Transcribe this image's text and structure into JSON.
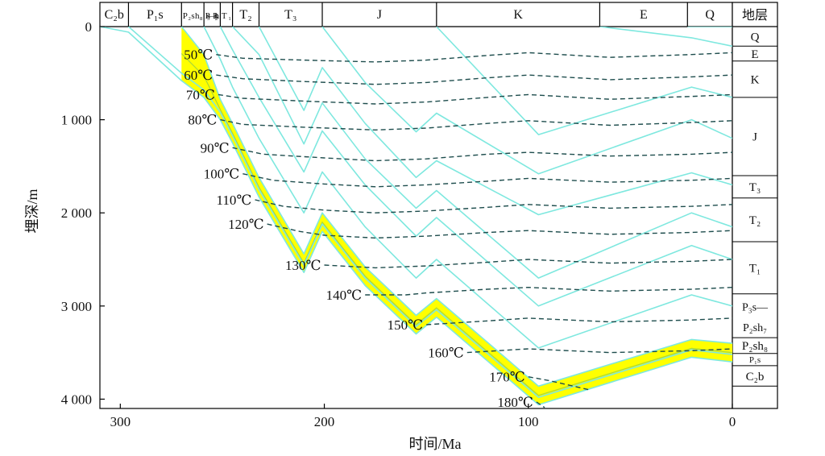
{
  "chart_data": {
    "type": "line",
    "title": "",
    "xlabel": "时间/Ma",
    "ylabel": "埋深/m",
    "x_reversed": true,
    "xlim": [
      310,
      0
    ],
    "ylim": [
      0,
      4100
    ],
    "x_ticks": [
      {
        "value": 300,
        "label": "300"
      },
      {
        "value": 200,
        "label": "200"
      },
      {
        "value": 100,
        "label": "100"
      },
      {
        "value": 0,
        "label": "0"
      }
    ],
    "y_ticks": [
      {
        "value": 0,
        "label": "0"
      },
      {
        "value": 1000,
        "label": "1 000"
      },
      {
        "value": 2000,
        "label": "2 000"
      },
      {
        "value": 3000,
        "label": "3 000"
      },
      {
        "value": 4000,
        "label": "4 000"
      }
    ],
    "stratigraphic_header": [
      {
        "label": "C₂b",
        "from": 310,
        "to": 296
      },
      {
        "label": "P₁s",
        "from": 296,
        "to": 270
      },
      {
        "label": "P₂sh₈",
        "from": 270,
        "to": 259
      },
      {
        "label": "P₃s—P₂sh₇",
        "from": 259,
        "to": 251
      },
      {
        "label": "T₁",
        "from": 251,
        "to": 245
      },
      {
        "label": "T₂",
        "from": 245,
        "to": 232
      },
      {
        "label": "T₃",
        "from": 232,
        "to": 201
      },
      {
        "label": "J",
        "from": 201,
        "to": 145
      },
      {
        "label": "K",
        "from": 145,
        "to": 65
      },
      {
        "label": "E",
        "from": 65,
        "to": 22
      },
      {
        "label": "Q",
        "from": 22,
        "to": 0
      }
    ],
    "strata_header_title": "地层",
    "strata_column": [
      {
        "label": "Q",
        "top": 0,
        "bottom": 210
      },
      {
        "label": "E",
        "top": 210,
        "bottom": 370
      },
      {
        "label": "K",
        "top": 370,
        "bottom": 760
      },
      {
        "label": "J",
        "top": 760,
        "bottom": 1600
      },
      {
        "label": "T₃",
        "top": 1600,
        "bottom": 1840
      },
      {
        "label": "T₂",
        "top": 1840,
        "bottom": 2310
      },
      {
        "label": "T₁",
        "top": 2310,
        "bottom": 2870
      },
      {
        "label": "P₃s—",
        "sub": "P₂sh₇",
        "top": 2870,
        "bottom": 3340
      },
      {
        "label": "P₂sh₈",
        "top": 3340,
        "bottom": 3510
      },
      {
        "label": "P₁s",
        "top": 3510,
        "bottom": 3640
      },
      {
        "label": "C₂b",
        "top": 3640,
        "bottom": 3860
      }
    ],
    "burial_curves": [
      {
        "name": "C₂b",
        "x": [
          310,
          296,
          270,
          259,
          251,
          245,
          232,
          210,
          201,
          180,
          155,
          145,
          95,
          20,
          0
        ],
        "y": [
          0,
          60,
          580,
          760,
          1000,
          1250,
          1830,
          2640,
          2200,
          2780,
          3300,
          3120,
          4060,
          3550,
          3600
        ]
      },
      {
        "name": "P₁s",
        "x": [
          296,
          270,
          259,
          251,
          245,
          232,
          210,
          201,
          180,
          155,
          145,
          95,
          20,
          0
        ],
        "y": [
          0,
          500,
          680,
          920,
          1170,
          1750,
          2560,
          2120,
          2700,
          3220,
          3040,
          3980,
          3470,
          3520
        ]
      },
      {
        "name": "P₂sh₈",
        "x": [
          270,
          259,
          251,
          245,
          232,
          210,
          201,
          180,
          155,
          145,
          95,
          20,
          0
        ],
        "y": [
          0,
          300,
          780,
          1040,
          1620,
          2440,
          2000,
          2580,
          3100,
          2920,
          3860,
          3360,
          3400
        ]
      },
      {
        "name": "P₃s—P₂sh₇",
        "x": [
          259,
          251,
          245,
          232,
          210,
          201,
          180,
          155,
          145,
          95,
          20,
          0
        ],
        "y": [
          0,
          350,
          650,
          1200,
          2000,
          1560,
          2150,
          2700,
          2500,
          3450,
          2880,
          3000
        ]
      },
      {
        "name": "T₁",
        "x": [
          251,
          245,
          232,
          210,
          201,
          180,
          155,
          145,
          95,
          20,
          0
        ],
        "y": [
          0,
          250,
          760,
          1560,
          1120,
          1700,
          2250,
          2050,
          3000,
          2350,
          2500
        ]
      },
      {
        "name": "T₂",
        "x": [
          245,
          232,
          210,
          201,
          180,
          155,
          145,
          95,
          20,
          0
        ],
        "y": [
          0,
          300,
          1260,
          820,
          1420,
          1950,
          1760,
          2700,
          2000,
          2150
        ]
      },
      {
        "name": "T₃",
        "x": [
          232,
          210,
          201,
          180,
          155,
          145,
          95,
          20,
          0
        ],
        "y": [
          0,
          900,
          440,
          1040,
          1620,
          1440,
          2020,
          1570,
          1700
        ]
      },
      {
        "name": "J",
        "x": [
          201,
          180,
          155,
          145,
          95,
          20,
          0
        ],
        "y": [
          0,
          600,
          1130,
          930,
          1580,
          1000,
          1200
        ]
      },
      {
        "name": "K",
        "x": [
          145,
          95,
          20,
          0
        ],
        "y": [
          0,
          1160,
          650,
          760
        ]
      },
      {
        "name": "E",
        "x": [
          65,
          20,
          0
        ],
        "y": [
          0,
          120,
          210
        ]
      },
      {
        "name": "Q",
        "x": [
          22,
          0
        ],
        "y": [
          0,
          0
        ]
      }
    ],
    "isotherms": [
      {
        "name": "50℃",
        "x": [
          253,
          240,
          210,
          175,
          150,
          120,
          100,
          60,
          20,
          0
        ],
        "y": [
          300,
          340,
          360,
          380,
          360,
          310,
          280,
          330,
          300,
          280
        ]
      },
      {
        "name": "60℃",
        "x": [
          253,
          240,
          210,
          175,
          150,
          120,
          100,
          60,
          20,
          0
        ],
        "y": [
          520,
          560,
          590,
          620,
          600,
          550,
          520,
          570,
          540,
          520
        ]
      },
      {
        "name": "70℃",
        "x": [
          252,
          240,
          210,
          175,
          150,
          120,
          100,
          60,
          20,
          0
        ],
        "y": [
          730,
          770,
          800,
          830,
          810,
          760,
          730,
          780,
          750,
          730
        ]
      },
      {
        "name": "80℃",
        "x": [
          251,
          240,
          210,
          175,
          150,
          120,
          100,
          60,
          20,
          0
        ],
        "y": [
          1000,
          1050,
          1080,
          1110,
          1090,
          1040,
          1010,
          1060,
          1030,
          1010
        ]
      },
      {
        "name": "90℃",
        "x": [
          245,
          230,
          200,
          175,
          150,
          120,
          100,
          60,
          20,
          0
        ],
        "y": [
          1300,
          1370,
          1410,
          1440,
          1420,
          1370,
          1350,
          1390,
          1370,
          1350
        ]
      },
      {
        "name": "100℃",
        "x": [
          240,
          225,
          200,
          175,
          150,
          120,
          100,
          60,
          20,
          0
        ],
        "y": [
          1580,
          1650,
          1690,
          1720,
          1700,
          1660,
          1630,
          1670,
          1650,
          1630
        ]
      },
      {
        "name": "110℃",
        "x": [
          234,
          220,
          200,
          175,
          150,
          120,
          100,
          60,
          20,
          0
        ],
        "y": [
          1860,
          1930,
          1970,
          2000,
          1980,
          1940,
          1910,
          1950,
          1930,
          1910
        ]
      },
      {
        "name": "120℃",
        "x": [
          228,
          212,
          200,
          175,
          150,
          120,
          100,
          60,
          20,
          0
        ],
        "y": [
          2120,
          2200,
          2240,
          2270,
          2250,
          2210,
          2190,
          2230,
          2210,
          2190
        ]
      },
      {
        "name": "130℃",
        "x": [
          200,
          175,
          150,
          120,
          100,
          60,
          20,
          0
        ],
        "y": [
          2560,
          2590,
          2570,
          2530,
          2500,
          2540,
          2520,
          2500
        ]
      },
      {
        "name": "140℃",
        "x": [
          180,
          160,
          150,
          120,
          100,
          60,
          20,
          0
        ],
        "y": [
          2880,
          2880,
          2860,
          2820,
          2800,
          2840,
          2820,
          2800
        ]
      },
      {
        "name": "150℃",
        "x": [
          150,
          120,
          100,
          60,
          20,
          0
        ],
        "y": [
          3200,
          3160,
          3130,
          3170,
          3150,
          3130
        ]
      },
      {
        "name": "160℃",
        "x": [
          130,
          100,
          60,
          20,
          0
        ],
        "y": [
          3500,
          3460,
          3500,
          3480,
          3460
        ]
      },
      {
        "name": "170℃",
        "x": [
          100,
          90,
          70
        ],
        "y": [
          3760,
          3800,
          3900
        ]
      },
      {
        "name": "180℃",
        "x": [
          96,
          92
        ],
        "y": [
          4030,
          4090
        ]
      }
    ],
    "highlight_band": {
      "top_curve": "P₂sh₈",
      "bottom_curve": "C₂b"
    },
    "colors": {
      "burial_curve": "#7ee8df",
      "isotherm": "#1e4d4d",
      "band_fill": "#ffff00",
      "band_line": "#a8d838"
    }
  }
}
